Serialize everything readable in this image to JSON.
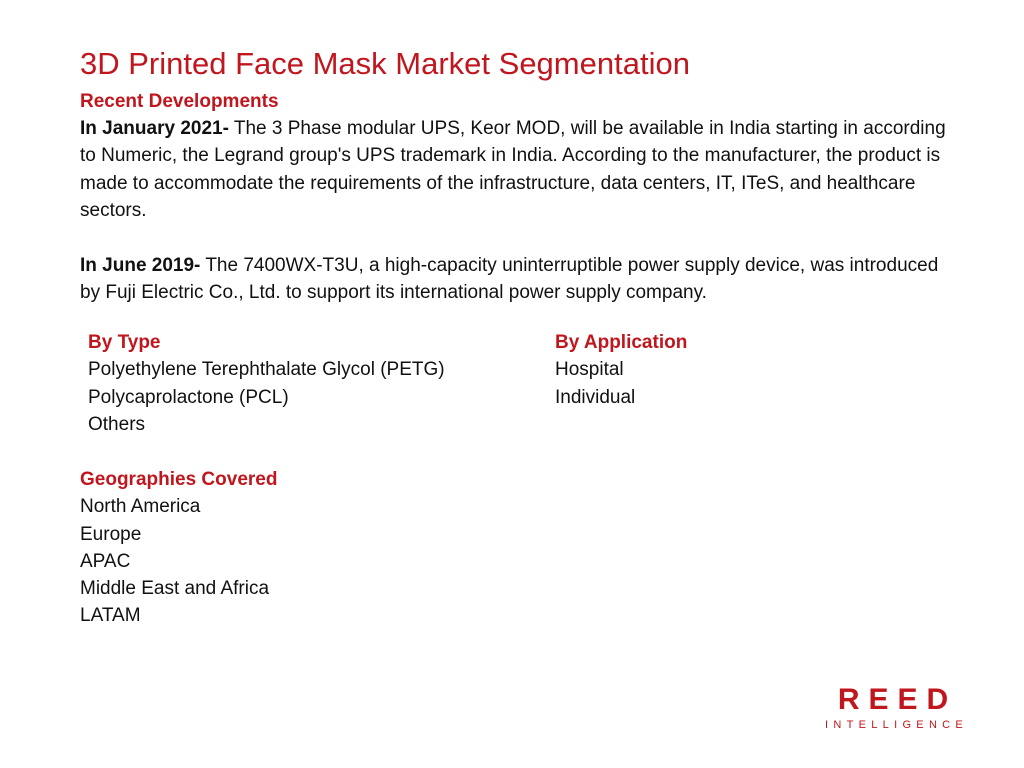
{
  "title": "3D Printed Face Mask Market Segmentation",
  "recent": {
    "heading": "Recent Developments",
    "items": [
      {
        "lead": "In January 2021-",
        "text": " The 3 Phase modular UPS, Keor MOD, will be available in India starting in according to Numeric, the Legrand group's UPS trademark in India. According to the manufacturer, the product is made to accommodate the requirements of the infrastructure, data centers, IT, ITeS, and healthcare sectors."
      },
      {
        "lead": "In June 2019-",
        "text": " The 7400WX-T3U, a high-capacity uninterruptible power supply device, was introduced by Fuji Electric Co., Ltd. to support its international power supply company."
      }
    ]
  },
  "by_type": {
    "heading": "By Type",
    "items": [
      "Polyethylene Terephthalate Glycol (PETG)",
      "Polycaprolactone (PCL)",
      "Others"
    ]
  },
  "by_application": {
    "heading": "By Application",
    "items": [
      "Hospital",
      "Individual"
    ]
  },
  "geographies": {
    "heading": "Geographies Covered",
    "items": [
      "North America",
      "Europe",
      "APAC",
      "Middle East and Africa",
      "LATAM"
    ]
  },
  "logo": {
    "main": "REED",
    "sub": "INTELLIGENCE"
  },
  "colors": {
    "accent": "#c0161e",
    "text": "#111111",
    "background": "#ffffff"
  }
}
